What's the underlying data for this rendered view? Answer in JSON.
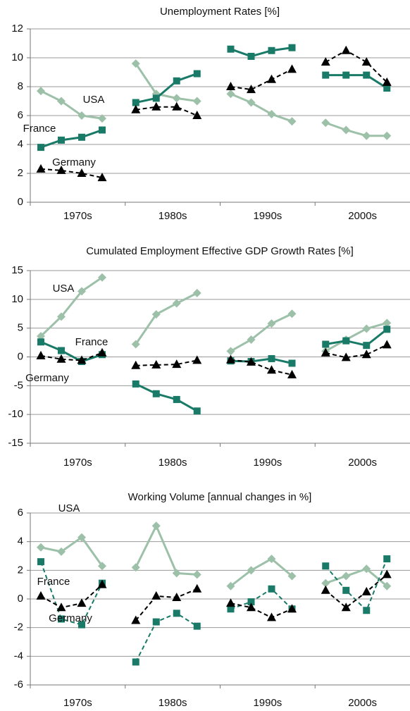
{
  "chart_data": [
    {
      "type": "line",
      "title": "Unemployment Rates [%]",
      "categories": [
        "1970s",
        "1980s",
        "1990s",
        "2000s"
      ],
      "ylim": [
        0,
        12
      ],
      "yticks": [
        0,
        2,
        4,
        6,
        8,
        10,
        12
      ],
      "grid": true,
      "series": [
        {
          "name": "USA",
          "color": "#9dc0a9",
          "marker": "diamond",
          "dashed": false,
          "values": [
            [
              7.7,
              7.0,
              6.0,
              5.8
            ],
            [
              9.6,
              7.5,
              7.2,
              7.0
            ],
            [
              7.5,
              6.9,
              6.1,
              5.6
            ],
            [
              5.5,
              5.0,
              4.6,
              4.6
            ]
          ]
        },
        {
          "name": "France",
          "color": "#1a7a68",
          "marker": "square",
          "dashed": false,
          "values": [
            [
              3.8,
              4.3,
              4.5,
              5.0
            ],
            [
              6.9,
              7.2,
              8.4,
              8.9
            ],
            [
              10.6,
              10.1,
              10.5,
              10.7
            ],
            [
              8.8,
              8.8,
              8.8,
              7.9
            ]
          ]
        },
        {
          "name": "Germany",
          "color": "#000000",
          "marker": "triangle",
          "dashed": true,
          "values": [
            [
              2.3,
              2.2,
              2.0,
              1.7
            ],
            [
              6.4,
              6.6,
              6.6,
              6.0
            ],
            [
              8.0,
              7.8,
              8.5,
              9.2
            ],
            [
              9.7,
              10.5,
              9.7,
              8.3
            ]
          ]
        }
      ]
    },
    {
      "type": "line",
      "title": "Cumulated Employment Effective GDP Growth Rates [%]",
      "categories": [
        "1970s",
        "1980s",
        "1990s",
        "2000s"
      ],
      "ylim": [
        -15,
        15
      ],
      "yticks": [
        -15,
        -10,
        -5,
        0,
        5,
        10,
        15
      ],
      "grid": true,
      "series": [
        {
          "name": "USA",
          "color": "#9dc0a9",
          "marker": "diamond",
          "dashed": false,
          "values": [
            [
              3.6,
              7.0,
              11.4,
              13.8
            ],
            [
              2.2,
              7.4,
              9.3,
              11.1
            ],
            [
              1.0,
              3.0,
              5.8,
              7.5
            ],
            [
              1.0,
              3.0,
              4.9,
              5.9
            ]
          ]
        },
        {
          "name": "France",
          "color": "#1a7a68",
          "marker": "square",
          "dashed": false,
          "values": [
            [
              2.6,
              1.1,
              -0.8,
              0.4
            ],
            [
              -4.7,
              -6.4,
              -7.4,
              -9.4
            ],
            [
              -0.7,
              -0.8,
              -0.3,
              -1.1
            ],
            [
              2.2,
              2.8,
              2.0,
              4.8
            ]
          ]
        },
        {
          "name": "Germany",
          "color": "#000000",
          "marker": "triangle",
          "dashed": true,
          "values": [
            [
              0.2,
              -0.4,
              -0.6,
              0.7
            ],
            [
              -1.5,
              -1.4,
              -1.3,
              -0.6
            ],
            [
              -0.5,
              -0.9,
              -2.3,
              -3.1
            ],
            [
              0.7,
              -0.1,
              0.4,
              2.1
            ]
          ]
        }
      ]
    },
    {
      "type": "line",
      "title": "Working Volume [annual changes in %]",
      "categories": [
        "1970s",
        "1980s",
        "1990s",
        "2000s"
      ],
      "ylim": [
        -6,
        6
      ],
      "yticks": [
        -6,
        -4,
        -2,
        0,
        2,
        4,
        6
      ],
      "grid": true,
      "series": [
        {
          "name": "USA",
          "color": "#9dc0a9",
          "marker": "diamond",
          "dashed": false,
          "values": [
            [
              3.6,
              3.3,
              4.3,
              2.3
            ],
            [
              2.2,
              5.1,
              1.8,
              1.7
            ],
            [
              0.9,
              2.0,
              2.8,
              1.6
            ],
            [
              1.1,
              1.6,
              2.1,
              0.9
            ]
          ]
        },
        {
          "name": "France",
          "color": "#1a7a68",
          "marker": "square",
          "dashed": true,
          "values": [
            [
              2.6,
              -1.4,
              -1.8,
              1.1
            ],
            [
              -4.4,
              -1.6,
              -1.0,
              -1.9
            ],
            [
              -0.7,
              -0.2,
              0.7,
              -0.7
            ],
            [
              2.3,
              0.6,
              -0.8,
              2.8
            ]
          ]
        },
        {
          "name": "Germany",
          "color": "#000000",
          "marker": "triangle",
          "dashed": true,
          "values": [
            [
              0.2,
              -0.6,
              -0.3,
              1.0
            ],
            [
              -1.5,
              0.2,
              0.1,
              0.7
            ],
            [
              -0.3,
              -0.6,
              -1.3,
              -0.7
            ],
            [
              0.6,
              -0.6,
              0.5,
              1.7
            ]
          ]
        }
      ]
    }
  ]
}
